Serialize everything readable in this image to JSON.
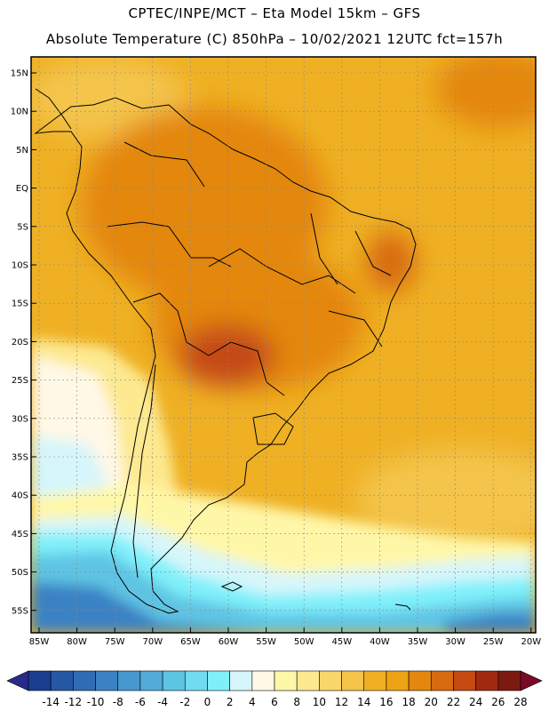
{
  "header": {
    "line1": "CPTEC/INPE/MCT –  Eta Model 15km – GFS",
    "line2": "Absolute Temperature (C) 850hPa – 10/02/2021 12UTC fct=157h"
  },
  "map": {
    "lat_ticks": [
      "15N",
      "10N",
      "5N",
      "EQ",
      "5S",
      "10S",
      "15S",
      "20S",
      "25S",
      "30S",
      "35S",
      "40S",
      "45S",
      "50S",
      "55S"
    ],
    "lon_ticks": [
      "85W",
      "80W",
      "75W",
      "70W",
      "65W",
      "60W",
      "55W",
      "50W",
      "45W",
      "40W",
      "35W",
      "30W",
      "25W",
      "20W"
    ]
  },
  "colorbar": {
    "labels": [
      "-14",
      "-12",
      "-10",
      "-8",
      "-6",
      "-4",
      "-2",
      "0",
      "2",
      "4",
      "6",
      "8",
      "10",
      "12",
      "14",
      "16",
      "18",
      "20",
      "22",
      "24",
      "26",
      "28"
    ],
    "colors": [
      "#1a3d8f",
      "#2657a3",
      "#2f6cb5",
      "#3a82c4",
      "#4696cf",
      "#52abd9",
      "#5ec4e4",
      "#6fdcef",
      "#7ff0fa",
      "#d6f6fb",
      "#fff8e6",
      "#fff7a8",
      "#fde990",
      "#f9d66a",
      "#f4c44b",
      "#efb024",
      "#eda314",
      "#e4870e",
      "#d86a10",
      "#c44a12",
      "#a02a10",
      "#7c1a10"
    ],
    "low_cap": "#2a2a8a",
    "high_cap": "#7a0a28"
  }
}
